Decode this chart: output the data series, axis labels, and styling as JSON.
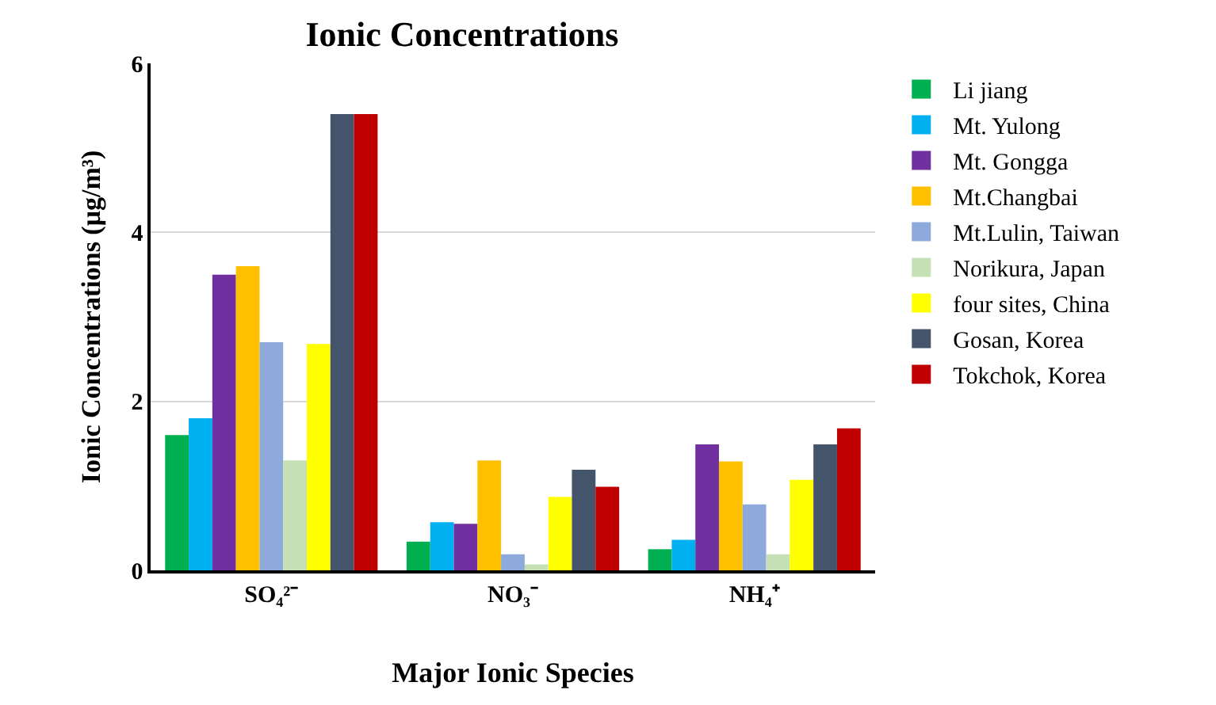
{
  "chart_data": {
    "type": "bar",
    "title": "Ionic Concentrations",
    "xlabel": "Major Ionic Species",
    "ylabel": "Ionic Concentrations (μg/m³)",
    "categories": [
      "SO₄²⁻",
      "NO₃⁻",
      "NH₄⁺"
    ],
    "series": [
      {
        "name": "Li jiang",
        "color": "#00b050",
        "values": [
          1.6,
          0.34,
          0.25
        ]
      },
      {
        "name": "Mt. Yulong",
        "color": "#00b0f0",
        "values": [
          1.8,
          0.57,
          0.36
        ]
      },
      {
        "name": "Mt. Gongga",
        "color": "#7030a0",
        "values": [
          3.5,
          0.55,
          1.49
        ]
      },
      {
        "name": "Mt.Changbai",
        "color": "#ffc000",
        "values": [
          3.6,
          1.3,
          1.29
        ]
      },
      {
        "name": "Mt.Lulin, Taiwan",
        "color": "#8eaadb",
        "values": [
          2.7,
          0.19,
          0.78
        ]
      },
      {
        "name": "Norikura, Japan",
        "color": "#c5e0b4",
        "values": [
          1.3,
          0.07,
          0.19
        ]
      },
      {
        "name": "four sites, China",
        "color": "#ffff00",
        "values": [
          2.68,
          0.87,
          1.07
        ]
      },
      {
        "name": "Gosan, Korea",
        "color": "#44546a",
        "values": [
          5.4,
          1.19,
          1.49
        ]
      },
      {
        "name": "Tokchok, Korea",
        "color": "#c00000",
        "values": [
          5.4,
          0.99,
          1.68
        ]
      }
    ],
    "ylim": [
      0,
      6
    ],
    "yticks": [
      0,
      2,
      4,
      6
    ],
    "grid": "y",
    "legend": "right"
  }
}
